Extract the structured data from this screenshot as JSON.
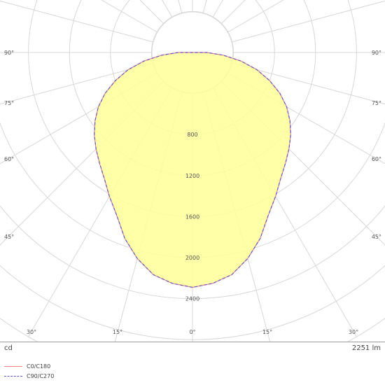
{
  "chart_data": {
    "type": "polar",
    "unit_label": "cd",
    "luminous_flux": "2251 lm",
    "angle_labels_left": [
      "90°",
      "75°",
      "60°",
      "45°",
      "30°",
      "15°"
    ],
    "angle_labels_right": [
      "90°",
      "75°",
      "60°",
      "45°",
      "30°",
      "15°"
    ],
    "bottom_label": "0°",
    "radial_ticks": [
      800,
      1200,
      1600,
      2000,
      2400
    ],
    "max_radius_value": 3200,
    "series": [
      {
        "name": "C0/C180",
        "color": "#f08080",
        "dash": "solid",
        "angles": [
          0,
          5,
          10,
          15,
          20,
          25,
          30,
          35,
          40,
          45,
          50,
          55,
          60,
          65,
          70,
          75,
          80,
          85,
          90
        ],
        "values": [
          2290,
          2260,
          2200,
          2080,
          1930,
          1750,
          1620,
          1500,
          1410,
          1330,
          1250,
          1160,
          1060,
          940,
          800,
          650,
          480,
          300,
          140
        ]
      },
      {
        "name": "C90/C270",
        "color": "#5b5bd6",
        "dash": "dashed",
        "angles": [
          0,
          5,
          10,
          15,
          20,
          25,
          30,
          35,
          40,
          45,
          50,
          55,
          60,
          65,
          70,
          75,
          80,
          85,
          90
        ],
        "values": [
          2290,
          2260,
          2200,
          2080,
          1930,
          1750,
          1620,
          1500,
          1410,
          1330,
          1250,
          1160,
          1060,
          940,
          800,
          650,
          480,
          300,
          140
        ]
      }
    ],
    "fill_color": "#ffff99"
  }
}
